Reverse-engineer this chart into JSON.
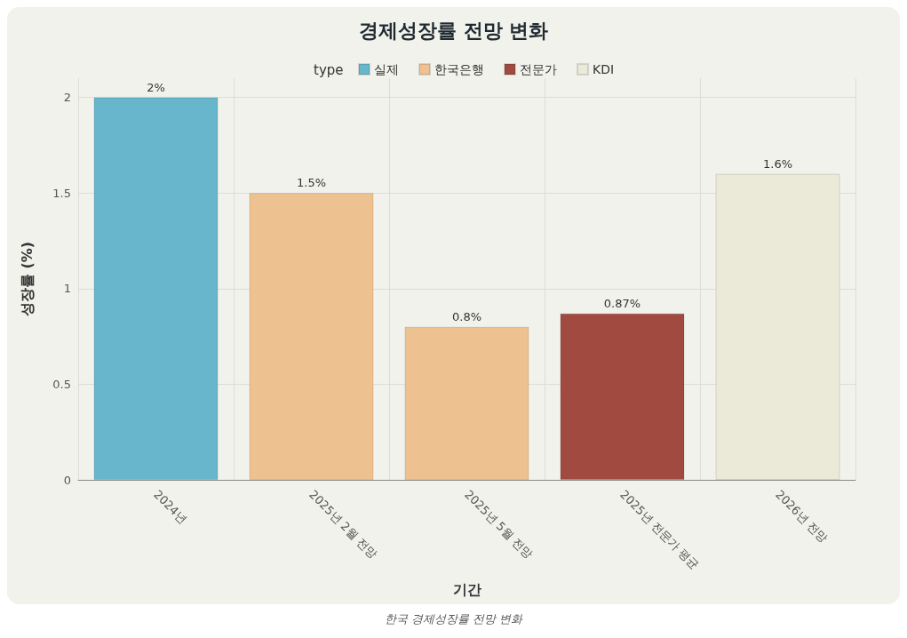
{
  "chart_data": {
    "type": "bar",
    "title": "경제성장률 전망 변화",
    "xlabel": "기간",
    "ylabel": "성장률 (%)",
    "legend_title": "type",
    "legend": "top",
    "categories": [
      "2024년",
      "2025년 2월 전망",
      "2025년 5월 전망",
      "2025년 전문가 평균",
      "2026년 전망"
    ],
    "series": [
      {
        "name": "실제",
        "color": "#67b6cb",
        "values": [
          2,
          null,
          null,
          null,
          null
        ],
        "value_labels": [
          "2%",
          null,
          null,
          null,
          null
        ]
      },
      {
        "name": "한국은행",
        "color": "#edc290",
        "values": [
          null,
          1.5,
          0.8,
          null,
          null
        ],
        "value_labels": [
          null,
          "1.5%",
          "0.8%",
          null,
          null
        ]
      },
      {
        "name": "전문가",
        "color": "#a04a40",
        "values": [
          null,
          null,
          null,
          0.87,
          null
        ],
        "value_labels": [
          null,
          null,
          null,
          "0.87%",
          null
        ]
      },
      {
        "name": "KDI",
        "color": "#ebe9d7",
        "values": [
          null,
          null,
          null,
          null,
          1.6
        ],
        "value_labels": [
          null,
          null,
          null,
          null,
          "1.6%"
        ]
      }
    ],
    "ylim": [
      0,
      2.1
    ],
    "yticks": [
      0,
      0.5,
      1,
      1.5,
      2
    ],
    "grid": true,
    "annotations": [
      "한국 경제성장률 전망 변화"
    ]
  }
}
